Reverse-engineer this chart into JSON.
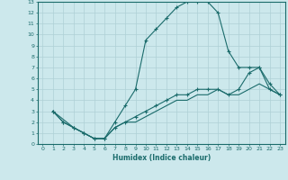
{
  "xlabel": "Humidex (Indice chaleur)",
  "bg_color": "#cce8ec",
  "line_color": "#1a6b6b",
  "grid_color": "#aed0d6",
  "xlim": [
    -0.5,
    23.5
  ],
  "ylim": [
    0,
    13
  ],
  "xticks": [
    0,
    1,
    2,
    3,
    4,
    5,
    6,
    7,
    8,
    9,
    10,
    11,
    12,
    13,
    14,
    15,
    16,
    17,
    18,
    19,
    20,
    21,
    22,
    23
  ],
  "yticks": [
    0,
    1,
    2,
    3,
    4,
    5,
    6,
    7,
    8,
    9,
    10,
    11,
    12,
    13
  ],
  "line1_x": [
    1,
    2,
    3,
    4,
    5,
    6,
    7,
    8,
    9,
    10,
    11,
    12,
    13,
    14,
    15,
    16,
    17,
    18,
    19,
    20,
    21,
    22,
    23
  ],
  "line1_y": [
    3.0,
    2.0,
    1.5,
    1.0,
    0.5,
    0.5,
    2.0,
    3.5,
    5.0,
    9.5,
    10.5,
    11.5,
    12.5,
    13.0,
    13.0,
    13.0,
    12.0,
    8.5,
    7.0,
    7.0,
    7.0,
    5.0,
    4.5
  ],
  "line2_x": [
    1,
    2,
    3,
    4,
    5,
    6,
    7,
    8,
    9,
    10,
    11,
    12,
    13,
    14,
    15,
    16,
    17,
    18,
    19,
    20,
    21,
    22,
    23
  ],
  "line2_y": [
    3.0,
    2.0,
    1.5,
    1.0,
    0.5,
    0.5,
    1.5,
    2.0,
    2.5,
    3.0,
    3.5,
    4.0,
    4.5,
    4.5,
    5.0,
    5.0,
    5.0,
    4.5,
    5.0,
    6.5,
    7.0,
    5.5,
    4.5
  ],
  "line3_x": [
    1,
    3,
    4,
    5,
    6,
    7,
    8,
    9,
    10,
    11,
    12,
    13,
    14,
    15,
    16,
    17,
    18,
    19,
    20,
    21,
    22,
    23
  ],
  "line3_y": [
    3.0,
    1.5,
    1.0,
    0.5,
    0.5,
    1.5,
    2.0,
    2.0,
    2.5,
    3.0,
    3.5,
    4.0,
    4.0,
    4.5,
    4.5,
    5.0,
    4.5,
    4.5,
    5.0,
    5.5,
    5.0,
    4.5
  ],
  "xlabel_fontsize": 5.5,
  "tick_fontsize": 4.5
}
